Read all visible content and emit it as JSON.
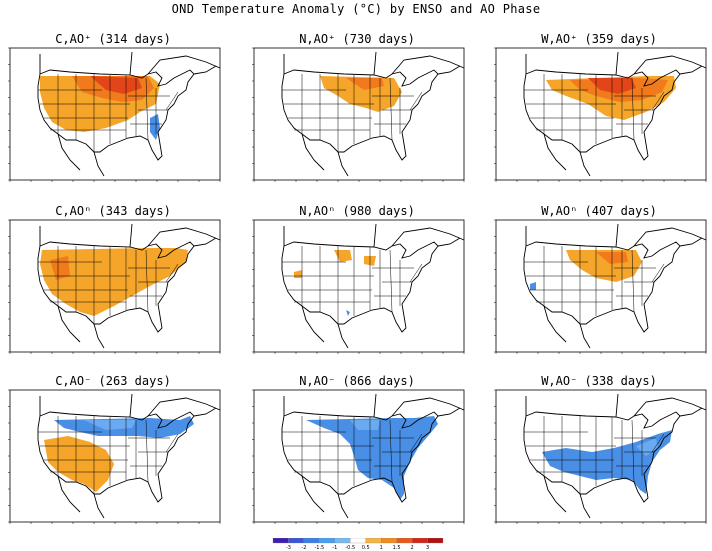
{
  "title": "OND Temperature Anomaly (°C) by ENSO and AO Phase",
  "panels": [
    {
      "label": "C,AO⁺ (314 days)",
      "pattern": "warm-strong-north-cool-se"
    },
    {
      "label": "N,AO⁺ (730 days)",
      "pattern": "warm-north-central"
    },
    {
      "label": "W,AO⁺ (359 days)",
      "pattern": "warm-strong-northeast"
    },
    {
      "label": "C,AOⁿ (343 days)",
      "pattern": "warm-broad"
    },
    {
      "label": "N,AOⁿ (980 days)",
      "pattern": "neutral-spotty"
    },
    {
      "label": "W,AOⁿ (407 days)",
      "pattern": "warm-north-central-small"
    },
    {
      "label": "C,AO⁻ (263 days)",
      "pattern": "cool-north-warm-sw"
    },
    {
      "label": "N,AO⁻ (866 days)",
      "pattern": "cool-east"
    },
    {
      "label": "W,AO⁻ (338 days)",
      "pattern": "cool-south-east"
    }
  ],
  "colorbar": {
    "labels": [
      "-3",
      "-2",
      "-1.5",
      "-1",
      "-0.5",
      "0.5",
      "1",
      "1.5",
      "2",
      "3"
    ],
    "colors": [
      "#3b1fb3",
      "#3a55d6",
      "#3a7fe8",
      "#4a9ff0",
      "#76baf2",
      "#ffffff",
      "#f5b342",
      "#f28a20",
      "#e8581b",
      "#d0261a",
      "#b01010"
    ]
  },
  "colors": {
    "warm1": "#f5a52a",
    "warm2": "#f07a1c",
    "warm3": "#e2451a",
    "cool1": "#4a8fe6",
    "cool2": "#6aaaf0"
  }
}
